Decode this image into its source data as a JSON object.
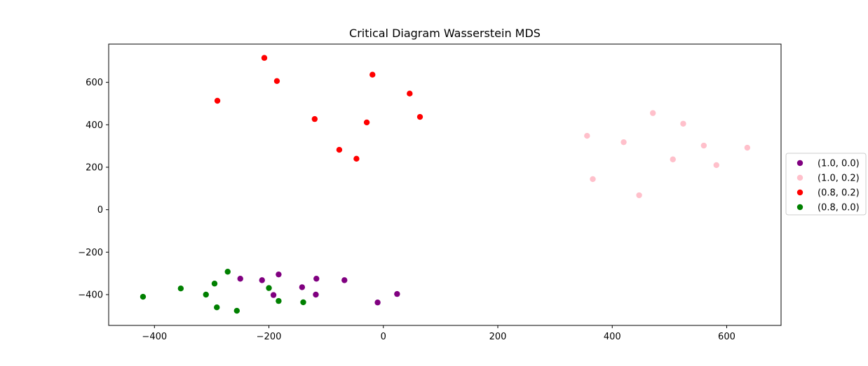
{
  "chart_data": {
    "type": "scatter",
    "title": "Critical Diagram Wasserstein MDS",
    "xlabel": "",
    "ylabel": "",
    "xlim": [
      -480,
      695
    ],
    "ylim": [
      -545,
      780
    ],
    "xticks": [
      -400,
      -200,
      0,
      200,
      400,
      600
    ],
    "yticks": [
      -400,
      -200,
      0,
      200,
      400,
      600
    ],
    "xtick_labels": [
      "−400",
      "−200",
      "0",
      "200",
      "400",
      "600"
    ],
    "ytick_labels": [
      "−400",
      "−200",
      "0",
      "200",
      "400",
      "600"
    ],
    "grid": false,
    "legend_position": "right, outside plot area",
    "series": [
      {
        "name": "(1.0, 0.0)",
        "color": "#800080",
        "points": [
          [
            -250,
            -325
          ],
          [
            -212,
            -332
          ],
          [
            -183,
            -305
          ],
          [
            -192,
            -402
          ],
          [
            -142,
            -365
          ],
          [
            -117,
            -325
          ],
          [
            -118,
            -400
          ],
          [
            -68,
            -332
          ],
          [
            -10,
            -437
          ],
          [
            24,
            -397
          ]
        ]
      },
      {
        "name": "(1.0, 0.2)",
        "color": "#ffc0cb",
        "points": [
          [
            356,
            348
          ],
          [
            366,
            144
          ],
          [
            420,
            318
          ],
          [
            447,
            68
          ],
          [
            471,
            455
          ],
          [
            506,
            237
          ],
          [
            524,
            405
          ],
          [
            560,
            302
          ],
          [
            582,
            210
          ],
          [
            636,
            292
          ]
        ]
      },
      {
        "name": "(0.8, 0.2)",
        "color": "#ff0000",
        "points": [
          [
            -208,
            715
          ],
          [
            -186,
            606
          ],
          [
            -290,
            513
          ],
          [
            -120,
            427
          ],
          [
            -77,
            282
          ],
          [
            -47,
            240
          ],
          [
            -29,
            411
          ],
          [
            -19,
            636
          ],
          [
            46,
            547
          ],
          [
            64,
            437
          ]
        ]
      },
      {
        "name": "(0.8, 0.0)",
        "color": "#008000",
        "points": [
          [
            -420,
            -410
          ],
          [
            -354,
            -371
          ],
          [
            -310,
            -400
          ],
          [
            -295,
            -348
          ],
          [
            -272,
            -292
          ],
          [
            -291,
            -460
          ],
          [
            -256,
            -476
          ],
          [
            -200,
            -369
          ],
          [
            -183,
            -430
          ],
          [
            -140,
            -436
          ]
        ]
      }
    ]
  }
}
